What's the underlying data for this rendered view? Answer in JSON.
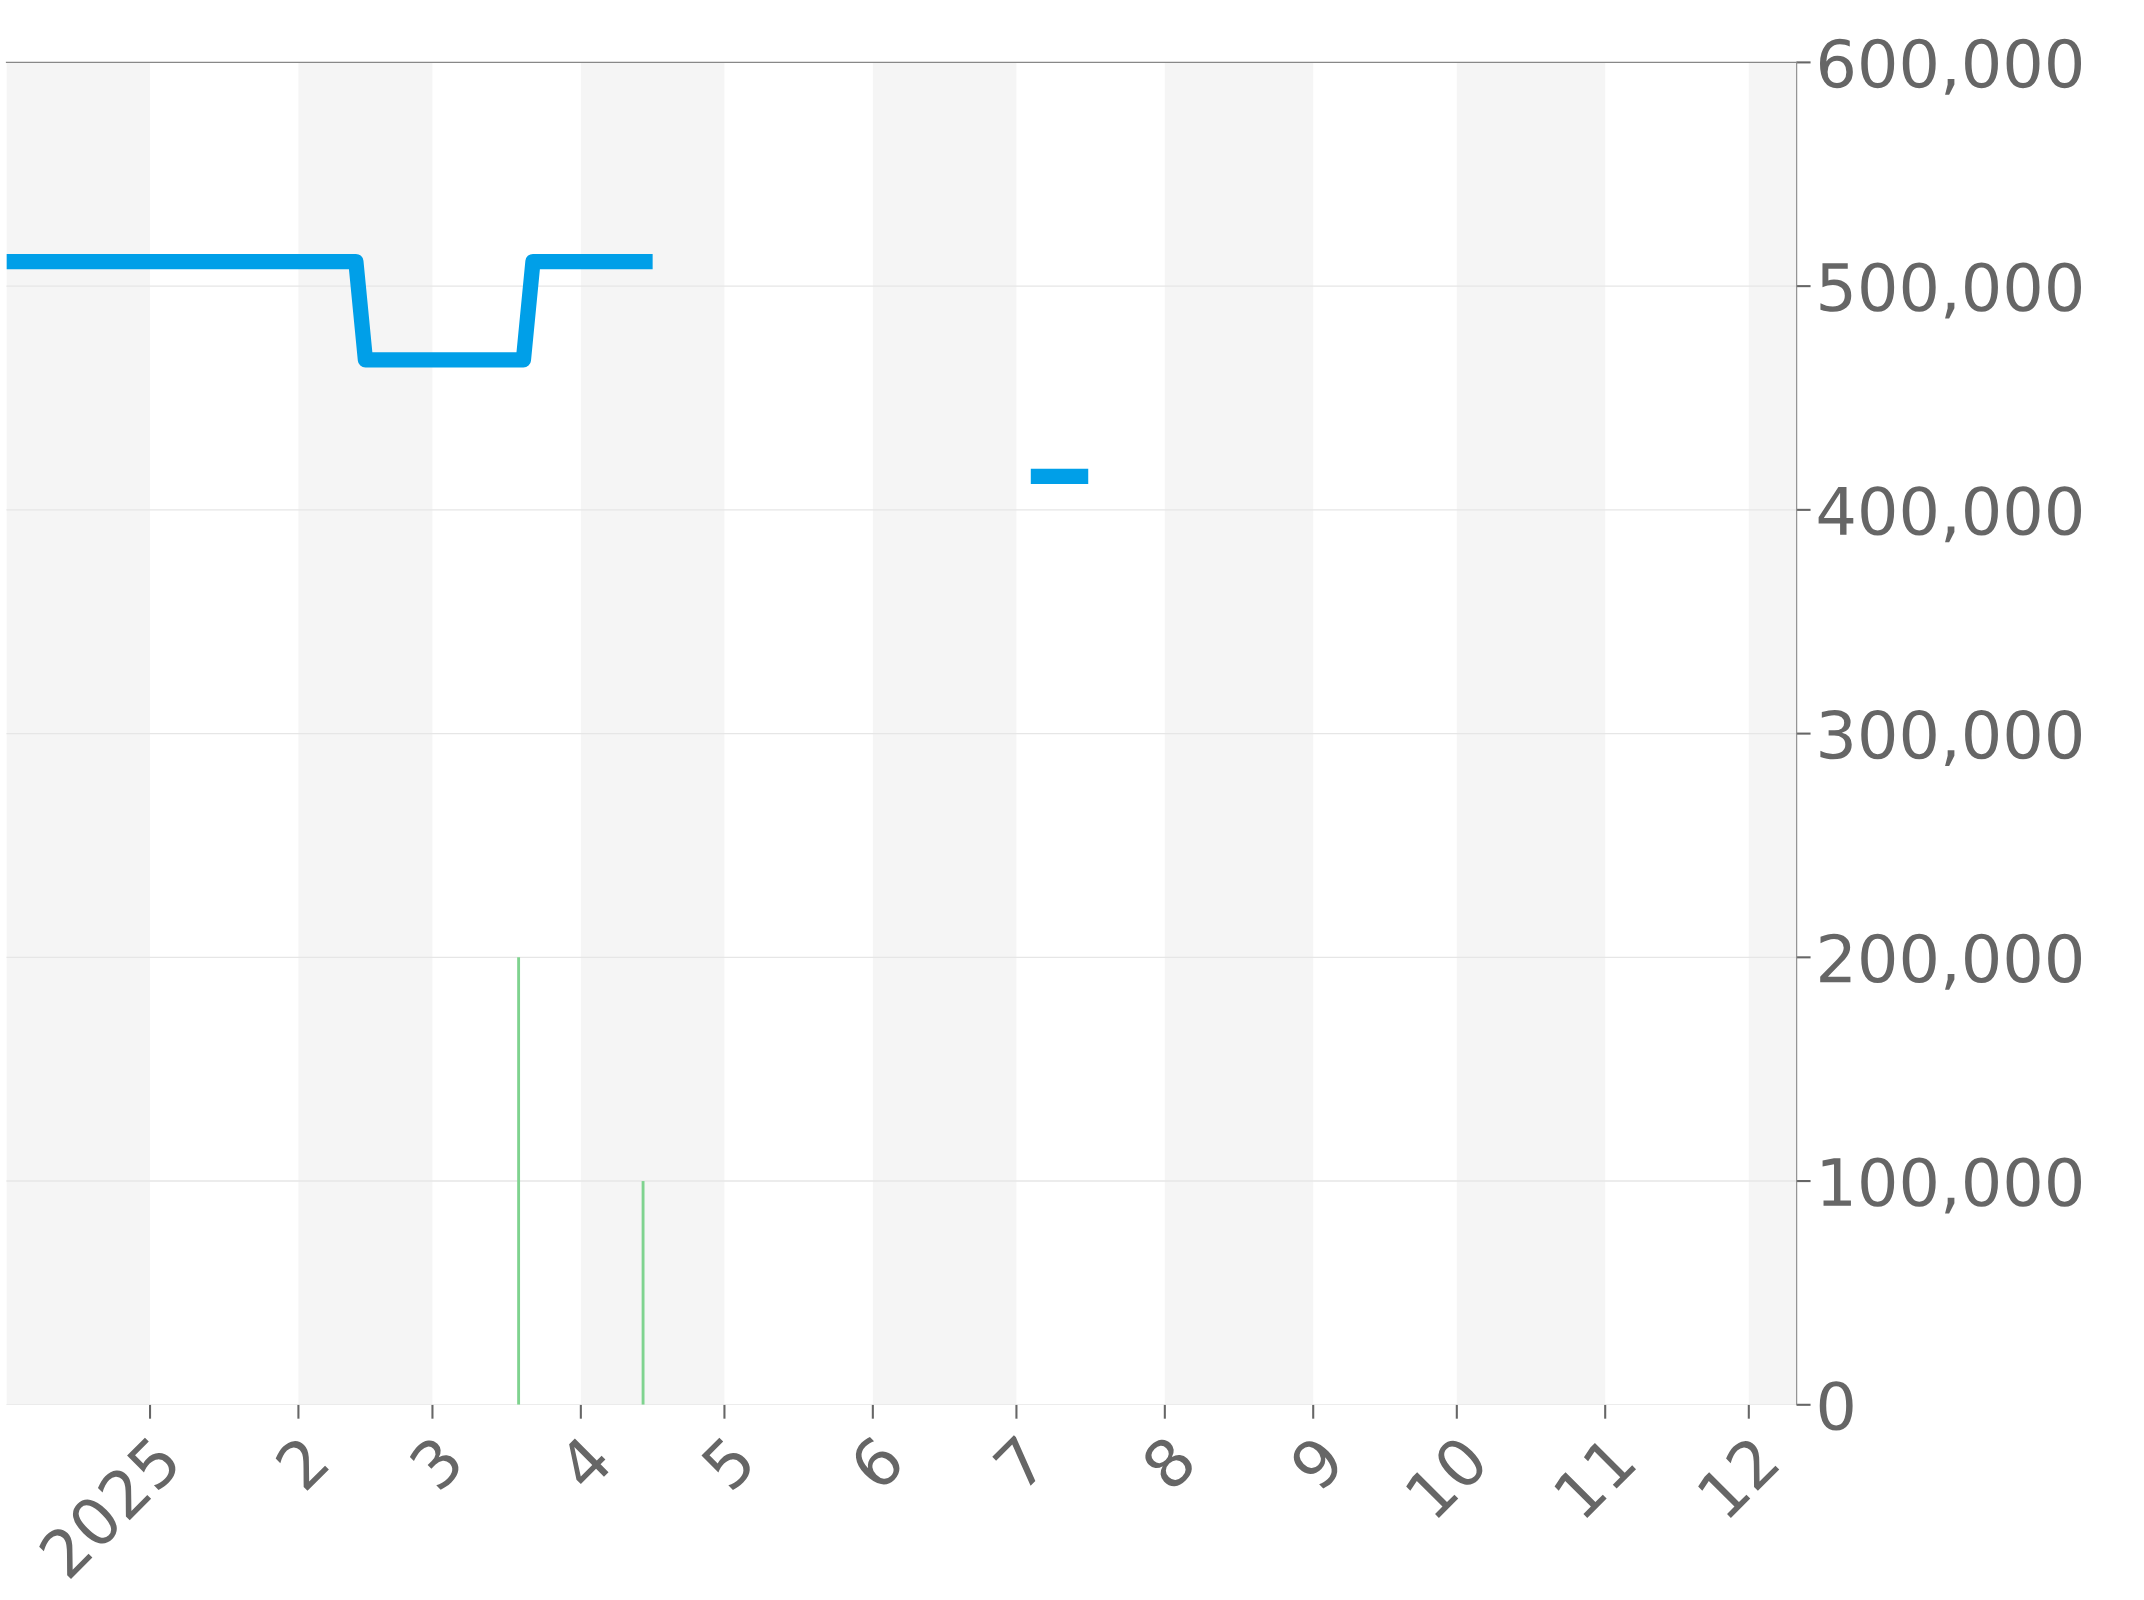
{
  "chart_data": {
    "type": "line",
    "series": [
      {
        "color": "#009fe8",
        "x": [
          "2024-12-02",
          "2025-02-13",
          "2025-02-15",
          "2025-03-20",
          "2025-03-22",
          "2025-04-16",
          "2025-05-01",
          "2025-07-04",
          "2025-07-16"
        ],
        "values": [
          511000,
          511000,
          467000,
          467000,
          511000,
          511000,
          null,
          415000,
          415000
        ]
      },
      {
        "type": "bar",
        "color": "#7fd38f",
        "x": [
          "2025-03-19",
          "2025-04-14"
        ],
        "values": [
          200000,
          100000
        ]
      }
    ],
    "xlim": [
      "2024-12-02",
      "2025-12-11"
    ],
    "xticks": [
      {
        "value": "2025-01-01",
        "label": "2025"
      },
      {
        "value": "2025-02-01",
        "label": "2"
      },
      {
        "value": "2025-03-01",
        "label": "3"
      },
      {
        "value": "2025-04-01",
        "label": "4"
      },
      {
        "value": "2025-05-01",
        "label": "5"
      },
      {
        "value": "2025-06-01",
        "label": "6"
      },
      {
        "value": "2025-07-01",
        "label": "7"
      },
      {
        "value": "2025-08-01",
        "label": "8"
      },
      {
        "value": "2025-09-01",
        "label": "9"
      },
      {
        "value": "2025-10-01",
        "label": "10"
      },
      {
        "value": "2025-11-01",
        "label": "11"
      },
      {
        "value": "2025-12-01",
        "label": "12"
      }
    ],
    "ylim": [
      0,
      600000
    ],
    "yticks": [
      {
        "value": 0,
        "label": "0"
      },
      {
        "value": 100000,
        "label": "100,000"
      },
      {
        "value": 200000,
        "label": "200,000"
      },
      {
        "value": 300000,
        "label": "300,000"
      },
      {
        "value": 400000,
        "label": "400,000"
      },
      {
        "value": 500000,
        "label": "500,000"
      },
      {
        "value": 600000,
        "label": "600,000"
      }
    ],
    "bands": [
      {
        "axis": "x",
        "from": "2024-12-02",
        "to": "2025-01-01",
        "color": "#f5f5f5"
      },
      {
        "axis": "x",
        "from": "2025-02-01",
        "to": "2025-03-01",
        "color": "#f5f5f5"
      },
      {
        "axis": "x",
        "from": "2025-04-01",
        "to": "2025-05-01",
        "color": "#f5f5f5"
      },
      {
        "axis": "x",
        "from": "2025-06-01",
        "to": "2025-07-01",
        "color": "#f5f5f5"
      },
      {
        "axis": "x",
        "from": "2025-08-01",
        "to": "2025-09-01",
        "color": "#f5f5f5"
      },
      {
        "axis": "x",
        "from": "2025-10-01",
        "to": "2025-11-01",
        "color": "#f5f5f5"
      },
      {
        "axis": "x",
        "from": "2025-12-01",
        "to": "2025-12-11",
        "color": "#f5f5f5"
      }
    ],
    "grid": "y",
    "legend": false,
    "marker": "none",
    "line_style": "solid"
  }
}
